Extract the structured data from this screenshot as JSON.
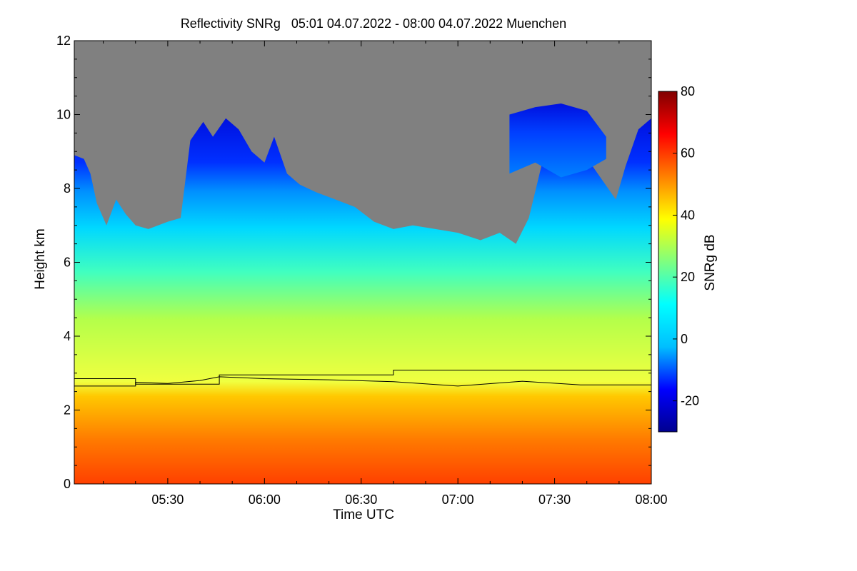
{
  "chart_data": {
    "type": "heatmap",
    "title": "Reflectivity SNRg   05:01 04.07.2022 - 08:00 04.07.2022 Muenchen",
    "xlabel": "Time UTC",
    "ylabel": "Height km",
    "x_range_min": [
      301,
      480
    ],
    "y_range_km": [
      0,
      12
    ],
    "x_ticks": [
      {
        "label": "05:30",
        "min": 330
      },
      {
        "label": "06:00",
        "min": 360
      },
      {
        "label": "06:30",
        "min": 390
      },
      {
        "label": "07:00",
        "min": 420
      },
      {
        "label": "07:30",
        "min": 450
      },
      {
        "label": "08:00",
        "min": 480
      }
    ],
    "y_ticks": [
      {
        "label": "0",
        "km": 0
      },
      {
        "label": "2",
        "km": 2
      },
      {
        "label": "4",
        "km": 4
      },
      {
        "label": "6",
        "km": 6
      },
      {
        "label": "8",
        "km": 8
      },
      {
        "label": "10",
        "km": 10
      },
      {
        "label": "12",
        "km": 12
      }
    ],
    "colorbar": {
      "label": "SNRg dB",
      "range": [
        -30,
        80
      ],
      "ticks": [
        {
          "label": "80",
          "v": 80
        },
        {
          "label": "60",
          "v": 60
        },
        {
          "label": "40",
          "v": 40
        },
        {
          "label": "20",
          "v": 20
        },
        {
          "label": "0",
          "v": 0
        },
        {
          "label": "-20",
          "v": -20
        }
      ],
      "colors": [
        "#00008f",
        "#0000ff",
        "#00bfff",
        "#00ffff",
        "#7fff7f",
        "#ffff00",
        "#ff8000",
        "#ff0000",
        "#800000"
      ]
    },
    "no_data_color": "#808080",
    "echo_top_km": [
      {
        "t": 301,
        "h": 8.9
      },
      {
        "t": 304,
        "h": 8.8
      },
      {
        "t": 306,
        "h": 8.4
      },
      {
        "t": 308,
        "h": 7.6
      },
      {
        "t": 311,
        "h": 7.0
      },
      {
        "t": 314,
        "h": 7.7
      },
      {
        "t": 317,
        "h": 7.3
      },
      {
        "t": 320,
        "h": 7.0
      },
      {
        "t": 324,
        "h": 6.9
      },
      {
        "t": 327,
        "h": 7.0
      },
      {
        "t": 330,
        "h": 7.1
      },
      {
        "t": 334,
        "h": 7.2
      },
      {
        "t": 337,
        "h": 9.3
      },
      {
        "t": 341,
        "h": 9.8
      },
      {
        "t": 344,
        "h": 9.4
      },
      {
        "t": 348,
        "h": 9.9
      },
      {
        "t": 352,
        "h": 9.6
      },
      {
        "t": 356,
        "h": 9.0
      },
      {
        "t": 360,
        "h": 8.7
      },
      {
        "t": 363,
        "h": 9.4
      },
      {
        "t": 367,
        "h": 8.4
      },
      {
        "t": 371,
        "h": 8.1
      },
      {
        "t": 376,
        "h": 7.9
      },
      {
        "t": 382,
        "h": 7.7
      },
      {
        "t": 388,
        "h": 7.5
      },
      {
        "t": 394,
        "h": 7.1
      },
      {
        "t": 400,
        "h": 6.9
      },
      {
        "t": 406,
        "h": 7.0
      },
      {
        "t": 413,
        "h": 6.9
      },
      {
        "t": 420,
        "h": 6.8
      },
      {
        "t": 427,
        "h": 6.6
      },
      {
        "t": 433,
        "h": 6.8
      },
      {
        "t": 438,
        "h": 6.5
      },
      {
        "t": 442,
        "h": 7.2
      },
      {
        "t": 447,
        "h": 9.0
      },
      {
        "t": 452,
        "h": 9.6
      },
      {
        "t": 457,
        "h": 9.0
      },
      {
        "t": 461,
        "h": 8.7
      },
      {
        "t": 465,
        "h": 8.2
      },
      {
        "t": 469,
        "h": 7.7
      },
      {
        "t": 472,
        "h": 8.6
      },
      {
        "t": 476,
        "h": 9.6
      },
      {
        "t": 480,
        "h": 9.9
      }
    ],
    "upper_cloud_km": [
      {
        "t": 436,
        "base": 8.4,
        "top": 10.0
      },
      {
        "t": 444,
        "base": 8.7,
        "top": 10.2
      },
      {
        "t": 452,
        "base": 8.3,
        "top": 10.3
      },
      {
        "t": 460,
        "base": 8.5,
        "top": 10.1
      },
      {
        "t": 466,
        "base": 8.8,
        "top": 9.4
      }
    ],
    "melting_layer_km": [
      {
        "t": 301,
        "h": 2.65
      },
      {
        "t": 320,
        "h": 2.65
      },
      {
        "t": 320,
        "h": 2.75
      },
      {
        "t": 330,
        "h": 2.72
      },
      {
        "t": 340,
        "h": 2.8
      },
      {
        "t": 346,
        "h": 2.9
      },
      {
        "t": 360,
        "h": 2.85
      },
      {
        "t": 380,
        "h": 2.82
      },
      {
        "t": 400,
        "h": 2.77
      },
      {
        "t": 420,
        "h": 2.65
      },
      {
        "t": 440,
        "h": 2.78
      },
      {
        "t": 458,
        "h": 2.68
      },
      {
        "t": 462,
        "h": 2.68
      },
      {
        "t": 480,
        "h": 2.68
      }
    ],
    "freezing_level_km": [
      {
        "t": 301,
        "h": 2.85
      },
      {
        "t": 320,
        "h": 2.85
      },
      {
        "t": 320,
        "h": 2.7
      },
      {
        "t": 346,
        "h": 2.7
      },
      {
        "t": 346,
        "h": 2.95
      },
      {
        "t": 400,
        "h": 2.95
      },
      {
        "t": 400,
        "h": 3.08
      },
      {
        "t": 480,
        "h": 3.08
      }
    ]
  }
}
